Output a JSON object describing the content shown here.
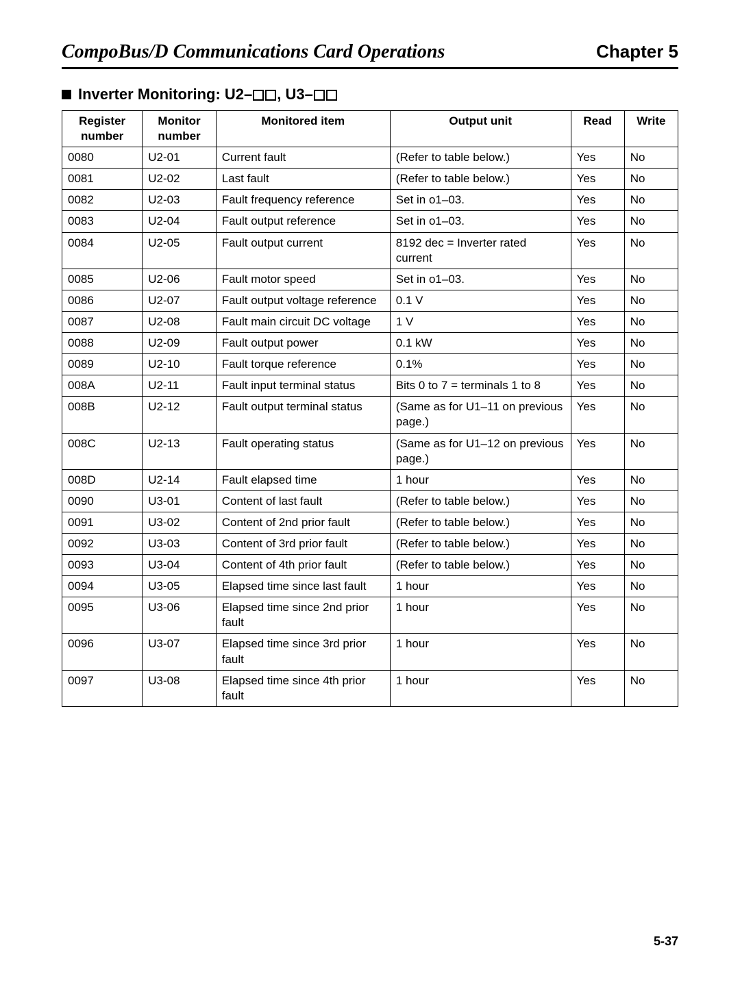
{
  "header": {
    "doc_title": "CompoBus/D Communications Card Operations",
    "chapter": "Chapter 5"
  },
  "section": {
    "prefix": "Inverter Monitoring: ",
    "u2": "U2–",
    "sep": ", ",
    "u3": "U3–"
  },
  "table": {
    "columns": [
      "Register number",
      "Monitor number",
      "Monitored item",
      "Output unit",
      "Read",
      "Write"
    ],
    "rows": [
      [
        "0080",
        "U2-01",
        "Current fault",
        "(Refer to table below.)",
        "Yes",
        "No"
      ],
      [
        "0081",
        "U2-02",
        "Last fault",
        "(Refer to table below.)",
        "Yes",
        "No"
      ],
      [
        "0082",
        "U2-03",
        "Fault frequency reference",
        "Set in o1–03.",
        "Yes",
        "No"
      ],
      [
        "0083",
        "U2-04",
        "Fault output reference",
        "Set in o1–03.",
        "Yes",
        "No"
      ],
      [
        "0084",
        "U2-05",
        "Fault output current",
        "8192 dec = Inverter rated current",
        "Yes",
        "No"
      ],
      [
        "0085",
        "U2-06",
        "Fault motor speed",
        "Set in o1–03.",
        "Yes",
        "No"
      ],
      [
        "0086",
        "U2-07",
        "Fault output voltage reference",
        "0.1 V",
        "Yes",
        "No"
      ],
      [
        "0087",
        "U2-08",
        "Fault main circuit DC voltage",
        "1 V",
        "Yes",
        "No"
      ],
      [
        "0088",
        "U2-09",
        "Fault output power",
        "0.1 kW",
        "Yes",
        "No"
      ],
      [
        "0089",
        "U2-10",
        "Fault torque reference",
        "0.1%",
        "Yes",
        "No"
      ],
      [
        "008A",
        "U2-11",
        "Fault input terminal status",
        "Bits 0 to 7 = terminals 1 to 8",
        "Yes",
        "No"
      ],
      [
        "008B",
        "U2-12",
        "Fault output terminal status",
        "(Same as for U1–11 on previous page.)",
        "Yes",
        "No"
      ],
      [
        "008C",
        "U2-13",
        "Fault operating status",
        "(Same as for U1–12 on previous page.)",
        "Yes",
        "No"
      ],
      [
        "008D",
        "U2-14",
        "Fault elapsed time",
        "1 hour",
        "Yes",
        "No"
      ],
      [
        "0090",
        "U3-01",
        "Content of last fault",
        "(Refer to table below.)",
        "Yes",
        "No"
      ],
      [
        "0091",
        "U3-02",
        "Content of 2nd prior fault",
        "(Refer to table below.)",
        "Yes",
        "No"
      ],
      [
        "0092",
        "U3-03",
        "Content of 3rd prior fault",
        "(Refer to table below.)",
        "Yes",
        "No"
      ],
      [
        "0093",
        "U3-04",
        "Content of 4th prior fault",
        "(Refer to table below.)",
        "Yes",
        "No"
      ],
      [
        "0094",
        "U3-05",
        "Elapsed time since last fault",
        "1 hour",
        "Yes",
        "No"
      ],
      [
        "0095",
        "U3-06",
        "Elapsed time since 2nd prior fault",
        "1 hour",
        "Yes",
        "No"
      ],
      [
        "0096",
        "U3-07",
        "Elapsed time since 3rd prior fault",
        "1 hour",
        "Yes",
        "No"
      ],
      [
        "0097",
        "U3-08",
        "Elapsed time since 4th prior fault",
        "1 hour",
        "Yes",
        "No"
      ]
    ]
  },
  "page_number": "5-37"
}
